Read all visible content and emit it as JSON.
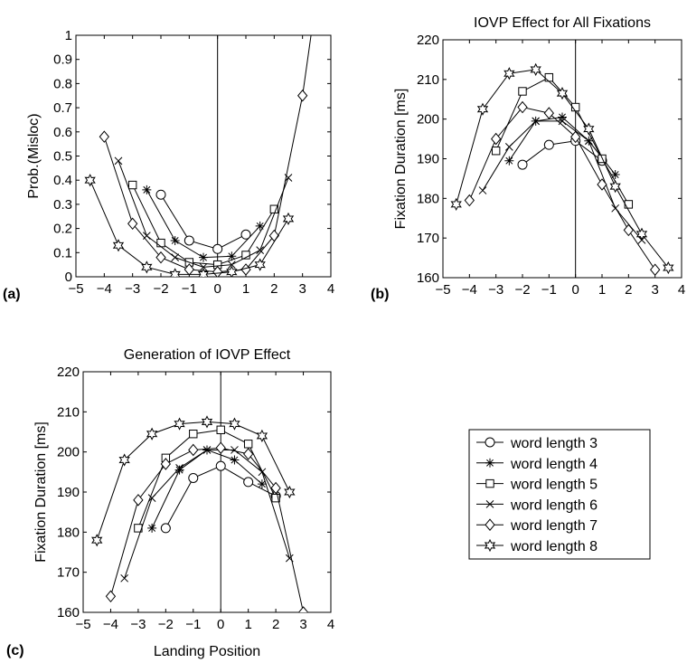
{
  "chart_data": [
    {
      "id": "a",
      "type": "line",
      "panel_label": "(a)",
      "title": "",
      "xlabel": "",
      "ylabel": "Prob.(Misloc)",
      "xlim": [
        -5,
        4
      ],
      "ylim": [
        0,
        1
      ],
      "xticks": [
        -5,
        -4,
        -3,
        -2,
        -1,
        0,
        1,
        2,
        3,
        4
      ],
      "yticks": [
        0,
        0.1,
        0.2,
        0.3,
        0.4,
        0.5,
        0.6,
        0.7,
        0.8,
        0.9,
        1
      ],
      "tick_labels_x": [
        "−5",
        "−4",
        "−3",
        "−2",
        "−1",
        "0",
        "1",
        "2",
        "3",
        "4"
      ],
      "tick_labels_y": [
        "0",
        "0.1",
        "0.2",
        "0.3",
        "0.4",
        "0.5",
        "0.6",
        "0.7",
        "0.8",
        "0.9",
        "1"
      ],
      "series": [
        {
          "marker": "circle",
          "x": [
            -2,
            -1,
            0,
            1
          ],
          "y": [
            0.34,
            0.15,
            0.115,
            0.175
          ]
        },
        {
          "marker": "asterisk",
          "x": [
            -2.5,
            -1.5,
            -0.5,
            0.5,
            1.5
          ],
          "y": [
            0.36,
            0.15,
            0.08,
            0.085,
            0.21
          ]
        },
        {
          "marker": "square",
          "x": [
            -3,
            -2,
            -1,
            0,
            1,
            2
          ],
          "y": [
            0.38,
            0.14,
            0.06,
            0.05,
            0.09,
            0.28
          ]
        },
        {
          "marker": "x",
          "x": [
            -3.5,
            -2.5,
            -1.5,
            -0.5,
            0.5,
            1.5,
            2.5
          ],
          "y": [
            0.48,
            0.17,
            0.08,
            0.04,
            0.05,
            0.11,
            0.41
          ]
        },
        {
          "marker": "diamond",
          "x": [
            -4,
            -3,
            -2,
            -1,
            0,
            1,
            2,
            3,
            3.3
          ],
          "y": [
            0.58,
            0.22,
            0.08,
            0.03,
            0.02,
            0.03,
            0.17,
            0.75,
            1.0
          ]
        },
        {
          "marker": "star",
          "x": [
            -4.5,
            -3.5,
            -2.5,
            -1.5,
            -0.5,
            0.5,
            1.5,
            2.5
          ],
          "y": [
            0.4,
            0.13,
            0.04,
            0.01,
            0.01,
            0.02,
            0.05,
            0.24
          ]
        }
      ]
    },
    {
      "id": "b",
      "type": "line",
      "panel_label": "(b)",
      "title": "IOVP Effect for All Fixations",
      "xlabel": "",
      "ylabel": "Fixation Duration [ms]",
      "xlim": [
        -5,
        4
      ],
      "ylim": [
        160,
        220
      ],
      "xticks": [
        -5,
        -4,
        -3,
        -2,
        -1,
        0,
        1,
        2,
        3,
        4
      ],
      "yticks": [
        160,
        170,
        180,
        190,
        200,
        210,
        220
      ],
      "tick_labels_x": [
        "−5",
        "−4",
        "−3",
        "−2",
        "−1",
        "0",
        "1",
        "2",
        "3",
        "4"
      ],
      "tick_labels_y": [
        "160",
        "170",
        "180",
        "190",
        "200",
        "210",
        "220"
      ],
      "series": [
        {
          "marker": "circle",
          "x": [
            -2,
            -1,
            0,
            1
          ],
          "y": [
            188.5,
            193.5,
            194.5,
            189.5
          ]
        },
        {
          "marker": "asterisk",
          "x": [
            -2.5,
            -1.5,
            -0.5,
            0.5,
            1.5
          ],
          "y": [
            189.5,
            199.5,
            200.5,
            194.5,
            186
          ]
        },
        {
          "marker": "square",
          "x": [
            -3,
            -2,
            -1,
            0,
            1,
            2
          ],
          "y": [
            192,
            207,
            210.5,
            203,
            190,
            178.5
          ]
        },
        {
          "marker": "x",
          "x": [
            -3.5,
            -2.5,
            -1.5,
            -0.5,
            0.5,
            1.5,
            2.5
          ],
          "y": [
            182,
            193,
            199.5,
            199.5,
            194.5,
            177.5,
            169.5
          ]
        },
        {
          "marker": "diamond",
          "x": [
            -4,
            -3,
            -2,
            -1,
            0,
            1,
            2,
            3
          ],
          "y": [
            179.5,
            195,
            203,
            201.5,
            195.5,
            183.5,
            172,
            162
          ]
        },
        {
          "marker": "star",
          "x": [
            -4.5,
            -3.5,
            -2.5,
            -1.5,
            -0.5,
            0.5,
            1.5,
            2.5,
            3.5
          ],
          "y": [
            178.5,
            202.5,
            211.5,
            212.5,
            206.5,
            197.5,
            183,
            171,
            162.5
          ]
        }
      ]
    },
    {
      "id": "c",
      "type": "line",
      "panel_label": "(c)",
      "title": "Generation of IOVP Effect",
      "xlabel": "Landing Position",
      "ylabel": "Fixation Duration [ms]",
      "xlim": [
        -5,
        4
      ],
      "ylim": [
        160,
        220
      ],
      "xticks": [
        -5,
        -4,
        -3,
        -2,
        -1,
        0,
        1,
        2,
        3,
        4
      ],
      "yticks": [
        160,
        170,
        180,
        190,
        200,
        210,
        220
      ],
      "tick_labels_x": [
        "−5",
        "−4",
        "−3",
        "−2",
        "−1",
        "0",
        "1",
        "2",
        "3",
        "4"
      ],
      "tick_labels_y": [
        "160",
        "170",
        "180",
        "190",
        "200",
        "210",
        "220"
      ],
      "series": [
        {
          "marker": "circle",
          "x": [
            -2,
            -1,
            0,
            1,
            2
          ],
          "y": [
            181,
            193.5,
            196.5,
            192.5,
            189
          ]
        },
        {
          "marker": "asterisk",
          "x": [
            -2.5,
            -1.5,
            -0.5,
            0.5,
            1.5
          ],
          "y": [
            181,
            195.5,
            200.5,
            198,
            192
          ]
        },
        {
          "marker": "square",
          "x": [
            -3,
            -2,
            -1,
            0,
            1,
            2
          ],
          "y": [
            181,
            198.5,
            204.5,
            205.5,
            202,
            188.5
          ]
        },
        {
          "marker": "x",
          "x": [
            -3.5,
            -2.5,
            -1.5,
            -0.5,
            0.5,
            1.5,
            2.5
          ],
          "y": [
            168.5,
            188.5,
            196,
            200.5,
            200.5,
            195,
            173.5
          ]
        },
        {
          "marker": "diamond",
          "x": [
            -4,
            -3,
            -2,
            -1,
            0,
            1,
            2,
            3
          ],
          "y": [
            164,
            188,
            197,
            200.5,
            201,
            199.5,
            191,
            160
          ]
        },
        {
          "marker": "star",
          "x": [
            -4.5,
            -3.5,
            -2.5,
            -1.5,
            -0.5,
            0.5,
            1.5,
            2.5
          ],
          "y": [
            178,
            198,
            204.5,
            207,
            207.5,
            207,
            204,
            190
          ]
        }
      ]
    }
  ],
  "legend": {
    "placement": "lower-right",
    "entries": [
      {
        "marker": "circle",
        "label": "word length 3"
      },
      {
        "marker": "asterisk",
        "label": "word length 4"
      },
      {
        "marker": "square",
        "label": "word length 5"
      },
      {
        "marker": "x",
        "label": "word length 6"
      },
      {
        "marker": "diamond",
        "label": "word length 7"
      },
      {
        "marker": "star",
        "label": "word length 8"
      }
    ]
  }
}
